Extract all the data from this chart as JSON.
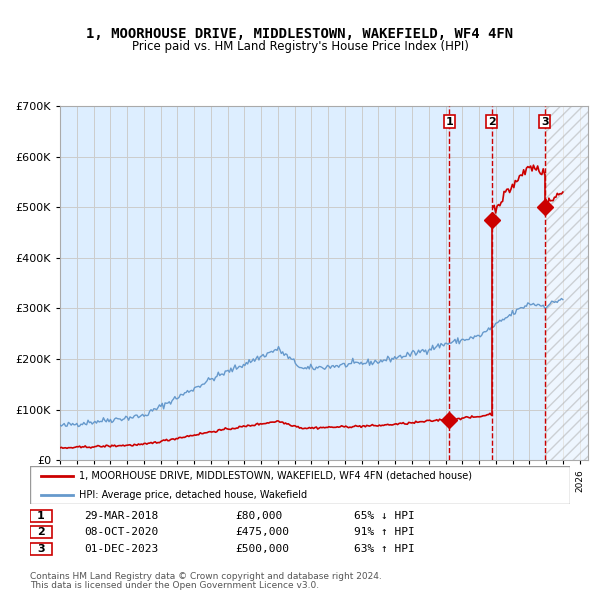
{
  "title": "1, MOORHOUSE DRIVE, MIDDLESTOWN, WAKEFIELD, WF4 4FN",
  "subtitle": "Price paid vs. HM Land Registry's House Price Index (HPI)",
  "legend_property": "1, MOORHOUSE DRIVE, MIDDLESTOWN, WAKEFIELD, WF4 4FN (detached house)",
  "legend_hpi": "HPI: Average price, detached house, Wakefield",
  "footer1": "Contains HM Land Registry data © Crown copyright and database right 2024.",
  "footer2": "This data is licensed under the Open Government Licence v3.0.",
  "transactions": [
    {
      "num": 1,
      "date": "29-MAR-2018",
      "price": 80000,
      "pct": "65%",
      "dir": "↓",
      "year_x": 2018.23
    },
    {
      "num": 2,
      "date": "08-OCT-2020",
      "price": 475000,
      "pct": "91%",
      "dir": "↑",
      "year_x": 2020.77
    },
    {
      "num": 3,
      "date": "01-DEC-2023",
      "price": 500000,
      "pct": "63%",
      "dir": "↑",
      "year_x": 2023.92
    }
  ],
  "hpi_color": "#6699cc",
  "property_color": "#cc0000",
  "marker_color": "#cc0000",
  "shade_color": "#ddeeff",
  "dashed_line_color": "#cc0000",
  "grid_color": "#cccccc",
  "background_color": "#ffffff",
  "ylim": [
    0,
    700000
  ],
  "xlim_start": 1995,
  "xlim_end": 2026.5,
  "xlabel": "",
  "ylabel": ""
}
